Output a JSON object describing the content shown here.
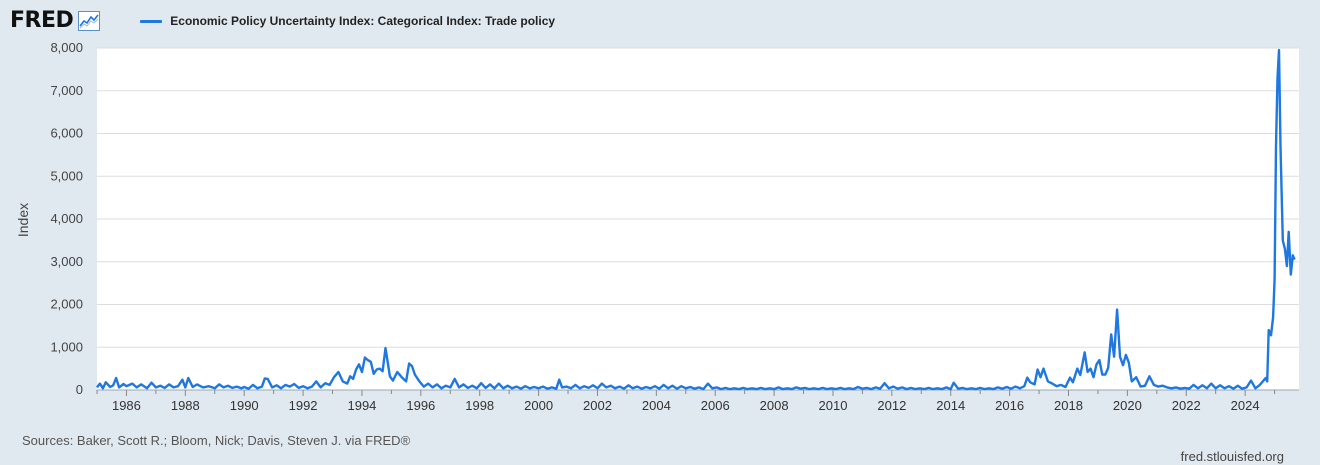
{
  "header": {
    "brand": "FRED",
    "brand_mark": "®"
  },
  "colors": {
    "series": "#1f77e0",
    "plot_bg": "#ffffff",
    "page_bg": "#e1e9f0",
    "grid": "#dddddd"
  },
  "chart_data": {
    "type": "line",
    "title": "",
    "ylabel": "Index",
    "xlabel": "",
    "ylim": [
      0,
      8000
    ],
    "xlim": [
      1985.0,
      2025.83
    ],
    "grid": true,
    "legend": "top-left",
    "y_ticks": [
      0,
      1000,
      2000,
      3000,
      4000,
      5000,
      6000,
      7000,
      8000
    ],
    "y_tick_labels": [
      "0",
      "1,000",
      "2,000",
      "3,000",
      "4,000",
      "5,000",
      "6,000",
      "7,000",
      "8,000"
    ],
    "x_ticks": [
      1986,
      1988,
      1990,
      1992,
      1994,
      1996,
      1998,
      2000,
      2002,
      2004,
      2006,
      2008,
      2010,
      2012,
      2014,
      2016,
      2018,
      2020,
      2022,
      2024
    ],
    "x_tick_labels": [
      "1986",
      "1988",
      "1990",
      "1992",
      "1994",
      "1996",
      "1998",
      "2000",
      "2002",
      "2004",
      "2006",
      "2008",
      "2010",
      "2012",
      "2014",
      "2016",
      "2018",
      "2020",
      "2022",
      "2024"
    ],
    "series": [
      {
        "name": "Economic Policy Uncertainty Index: Categorical Index: Trade policy",
        "color": "#1f77e0",
        "points": [
          [
            1985.0,
            60
          ],
          [
            1985.1,
            150
          ],
          [
            1985.2,
            40
          ],
          [
            1985.3,
            180
          ],
          [
            1985.45,
            70
          ],
          [
            1985.55,
            110
          ],
          [
            1985.65,
            280
          ],
          [
            1985.75,
            60
          ],
          [
            1985.9,
            140
          ],
          [
            1986.0,
            90
          ],
          [
            1986.2,
            150
          ],
          [
            1986.35,
            60
          ],
          [
            1986.5,
            130
          ],
          [
            1986.7,
            40
          ],
          [
            1986.85,
            170
          ],
          [
            1987.0,
            60
          ],
          [
            1987.15,
            100
          ],
          [
            1987.3,
            50
          ],
          [
            1987.45,
            130
          ],
          [
            1987.6,
            60
          ],
          [
            1987.75,
            90
          ],
          [
            1987.9,
            240
          ],
          [
            1988.0,
            60
          ],
          [
            1988.1,
            280
          ],
          [
            1988.25,
            70
          ],
          [
            1988.4,
            130
          ],
          [
            1988.6,
            60
          ],
          [
            1988.8,
            90
          ],
          [
            1989.0,
            40
          ],
          [
            1989.15,
            130
          ],
          [
            1989.3,
            60
          ],
          [
            1989.45,
            100
          ],
          [
            1989.6,
            50
          ],
          [
            1989.75,
            80
          ],
          [
            1989.9,
            40
          ],
          [
            1990.0,
            70
          ],
          [
            1990.15,
            30
          ],
          [
            1990.3,
            120
          ],
          [
            1990.45,
            40
          ],
          [
            1990.6,
            80
          ],
          [
            1990.7,
            270
          ],
          [
            1990.8,
            260
          ],
          [
            1990.95,
            60
          ],
          [
            1991.1,
            110
          ],
          [
            1991.25,
            40
          ],
          [
            1991.4,
            120
          ],
          [
            1991.55,
            80
          ],
          [
            1991.7,
            140
          ],
          [
            1991.85,
            50
          ],
          [
            1992.0,
            90
          ],
          [
            1992.15,
            40
          ],
          [
            1992.3,
            80
          ],
          [
            1992.45,
            200
          ],
          [
            1992.6,
            60
          ],
          [
            1992.75,
            160
          ],
          [
            1992.9,
            120
          ],
          [
            1993.05,
            300
          ],
          [
            1993.2,
            420
          ],
          [
            1993.35,
            200
          ],
          [
            1993.5,
            150
          ],
          [
            1993.6,
            320
          ],
          [
            1993.7,
            260
          ],
          [
            1993.8,
            480
          ],
          [
            1993.9,
            600
          ],
          [
            1994.0,
            420
          ],
          [
            1994.1,
            760
          ],
          [
            1994.2,
            700
          ],
          [
            1994.3,
            660
          ],
          [
            1994.4,
            380
          ],
          [
            1994.5,
            480
          ],
          [
            1994.6,
            500
          ],
          [
            1994.7,
            440
          ],
          [
            1994.8,
            980
          ],
          [
            1994.95,
            320
          ],
          [
            1995.05,
            220
          ],
          [
            1995.2,
            420
          ],
          [
            1995.35,
            300
          ],
          [
            1995.5,
            200
          ],
          [
            1995.6,
            620
          ],
          [
            1995.7,
            560
          ],
          [
            1995.8,
            360
          ],
          [
            1995.95,
            200
          ],
          [
            1996.1,
            80
          ],
          [
            1996.25,
            150
          ],
          [
            1996.4,
            60
          ],
          [
            1996.55,
            130
          ],
          [
            1996.7,
            40
          ],
          [
            1996.85,
            100
          ],
          [
            1997.0,
            60
          ],
          [
            1997.15,
            260
          ],
          [
            1997.3,
            60
          ],
          [
            1997.45,
            130
          ],
          [
            1997.6,
            50
          ],
          [
            1997.75,
            100
          ],
          [
            1997.9,
            40
          ],
          [
            1998.05,
            160
          ],
          [
            1998.2,
            50
          ],
          [
            1998.35,
            130
          ],
          [
            1998.5,
            40
          ],
          [
            1998.65,
            150
          ],
          [
            1998.8,
            40
          ],
          [
            1998.95,
            100
          ],
          [
            1999.1,
            40
          ],
          [
            1999.25,
            80
          ],
          [
            1999.4,
            30
          ],
          [
            1999.55,
            90
          ],
          [
            1999.7,
            40
          ],
          [
            1999.85,
            70
          ],
          [
            2000.0,
            40
          ],
          [
            2000.15,
            80
          ],
          [
            2000.3,
            30
          ],
          [
            2000.45,
            60
          ],
          [
            2000.6,
            30
          ],
          [
            2000.7,
            240
          ],
          [
            2000.8,
            60
          ],
          [
            2000.95,
            80
          ],
          [
            2001.1,
            40
          ],
          [
            2001.25,
            120
          ],
          [
            2001.4,
            40
          ],
          [
            2001.55,
            90
          ],
          [
            2001.7,
            50
          ],
          [
            2001.85,
            110
          ],
          [
            2002.0,
            40
          ],
          [
            2002.15,
            150
          ],
          [
            2002.3,
            60
          ],
          [
            2002.45,
            100
          ],
          [
            2002.6,
            40
          ],
          [
            2002.75,
            80
          ],
          [
            2002.9,
            30
          ],
          [
            2003.05,
            110
          ],
          [
            2003.2,
            40
          ],
          [
            2003.35,
            80
          ],
          [
            2003.5,
            30
          ],
          [
            2003.65,
            70
          ],
          [
            2003.8,
            40
          ],
          [
            2003.95,
            90
          ],
          [
            2004.1,
            30
          ],
          [
            2004.25,
            120
          ],
          [
            2004.4,
            40
          ],
          [
            2004.55,
            100
          ],
          [
            2004.7,
            30
          ],
          [
            2004.85,
            90
          ],
          [
            2005.0,
            40
          ],
          [
            2005.15,
            70
          ],
          [
            2005.3,
            30
          ],
          [
            2005.45,
            60
          ],
          [
            2005.6,
            20
          ],
          [
            2005.75,
            150
          ],
          [
            2005.9,
            40
          ],
          [
            2006.05,
            60
          ],
          [
            2006.2,
            20
          ],
          [
            2006.35,
            50
          ],
          [
            2006.5,
            20
          ],
          [
            2006.65,
            40
          ],
          [
            2006.8,
            20
          ],
          [
            2006.95,
            50
          ],
          [
            2007.1,
            20
          ],
          [
            2007.25,
            40
          ],
          [
            2007.4,
            20
          ],
          [
            2007.55,
            50
          ],
          [
            2007.7,
            20
          ],
          [
            2007.85,
            40
          ],
          [
            2008.0,
            20
          ],
          [
            2008.15,
            60
          ],
          [
            2008.3,
            20
          ],
          [
            2008.45,
            40
          ],
          [
            2008.6,
            20
          ],
          [
            2008.75,
            60
          ],
          [
            2008.9,
            30
          ],
          [
            2009.05,
            50
          ],
          [
            2009.2,
            20
          ],
          [
            2009.35,
            40
          ],
          [
            2009.5,
            20
          ],
          [
            2009.65,
            50
          ],
          [
            2009.8,
            20
          ],
          [
            2009.95,
            40
          ],
          [
            2010.1,
            20
          ],
          [
            2010.25,
            50
          ],
          [
            2010.4,
            20
          ],
          [
            2010.55,
            40
          ],
          [
            2010.7,
            20
          ],
          [
            2010.85,
            70
          ],
          [
            2011.0,
            30
          ],
          [
            2011.15,
            50
          ],
          [
            2011.3,
            20
          ],
          [
            2011.45,
            60
          ],
          [
            2011.6,
            30
          ],
          [
            2011.75,
            160
          ],
          [
            2011.9,
            40
          ],
          [
            2012.05,
            80
          ],
          [
            2012.2,
            30
          ],
          [
            2012.35,
            60
          ],
          [
            2012.5,
            20
          ],
          [
            2012.65,
            50
          ],
          [
            2012.8,
            20
          ],
          [
            2012.95,
            40
          ],
          [
            2013.1,
            20
          ],
          [
            2013.25,
            50
          ],
          [
            2013.4,
            20
          ],
          [
            2013.55,
            40
          ],
          [
            2013.7,
            20
          ],
          [
            2013.85,
            60
          ],
          [
            2014.0,
            20
          ],
          [
            2014.1,
            170
          ],
          [
            2014.25,
            30
          ],
          [
            2014.4,
            50
          ],
          [
            2014.55,
            20
          ],
          [
            2014.7,
            40
          ],
          [
            2014.85,
            20
          ],
          [
            2015.0,
            50
          ],
          [
            2015.15,
            20
          ],
          [
            2015.3,
            40
          ],
          [
            2015.45,
            20
          ],
          [
            2015.6,
            60
          ],
          [
            2015.75,
            30
          ],
          [
            2015.9,
            70
          ],
          [
            2016.05,
            30
          ],
          [
            2016.2,
            80
          ],
          [
            2016.35,
            40
          ],
          [
            2016.5,
            90
          ],
          [
            2016.6,
            290
          ],
          [
            2016.7,
            180
          ],
          [
            2016.85,
            130
          ],
          [
            2016.95,
            480
          ],
          [
            2017.05,
            300
          ],
          [
            2017.15,
            500
          ],
          [
            2017.3,
            200
          ],
          [
            2017.45,
            150
          ],
          [
            2017.6,
            90
          ],
          [
            2017.75,
            120
          ],
          [
            2017.9,
            70
          ],
          [
            2018.05,
            290
          ],
          [
            2018.15,
            180
          ],
          [
            2018.3,
            500
          ],
          [
            2018.4,
            350
          ],
          [
            2018.55,
            880
          ],
          [
            2018.65,
            420
          ],
          [
            2018.75,
            500
          ],
          [
            2018.85,
            300
          ],
          [
            2018.95,
            600
          ],
          [
            2019.05,
            700
          ],
          [
            2019.15,
            360
          ],
          [
            2019.25,
            360
          ],
          [
            2019.35,
            520
          ],
          [
            2019.45,
            1300
          ],
          [
            2019.55,
            780
          ],
          [
            2019.65,
            1880
          ],
          [
            2019.75,
            780
          ],
          [
            2019.85,
            580
          ],
          [
            2019.95,
            820
          ],
          [
            2020.05,
            640
          ],
          [
            2020.15,
            200
          ],
          [
            2020.3,
            300
          ],
          [
            2020.45,
            80
          ],
          [
            2020.6,
            100
          ],
          [
            2020.75,
            320
          ],
          [
            2020.9,
            120
          ],
          [
            2021.05,
            80
          ],
          [
            2021.2,
            100
          ],
          [
            2021.35,
            60
          ],
          [
            2021.5,
            40
          ],
          [
            2021.65,
            60
          ],
          [
            2021.8,
            30
          ],
          [
            2021.95,
            50
          ],
          [
            2022.1,
            30
          ],
          [
            2022.25,
            120
          ],
          [
            2022.4,
            40
          ],
          [
            2022.55,
            110
          ],
          [
            2022.7,
            40
          ],
          [
            2022.85,
            150
          ],
          [
            2023.0,
            40
          ],
          [
            2023.15,
            110
          ],
          [
            2023.3,
            40
          ],
          [
            2023.45,
            90
          ],
          [
            2023.6,
            30
          ],
          [
            2023.75,
            100
          ],
          [
            2023.9,
            30
          ],
          [
            2024.05,
            60
          ],
          [
            2024.2,
            220
          ],
          [
            2024.35,
            40
          ],
          [
            2024.5,
            120
          ],
          [
            2024.6,
            200
          ],
          [
            2024.7,
            280
          ],
          [
            2024.75,
            200
          ],
          [
            2024.8,
            1400
          ],
          [
            2024.88,
            1280
          ],
          [
            2024.95,
            1700
          ],
          [
            2025.0,
            2600
          ],
          [
            2025.05,
            5700
          ],
          [
            2025.1,
            7300
          ],
          [
            2025.15,
            7950
          ],
          [
            2025.2,
            5700
          ],
          [
            2025.28,
            3500
          ],
          [
            2025.35,
            3300
          ],
          [
            2025.42,
            2900
          ],
          [
            2025.48,
            3700
          ],
          [
            2025.55,
            2700
          ],
          [
            2025.62,
            3150
          ],
          [
            2025.68,
            3050
          ]
        ]
      }
    ]
  },
  "footer": {
    "source": "Sources: Baker, Scott R.; Bloom, Nick; Davis, Steven J. via FRED®",
    "url": "fred.stlouisfed.org"
  }
}
